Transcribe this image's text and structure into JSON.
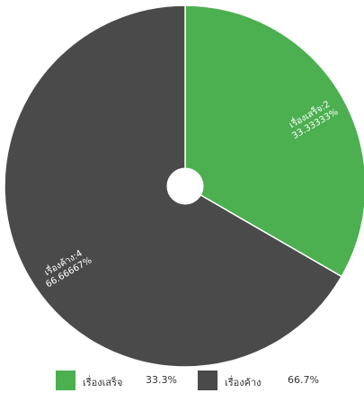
{
  "chart_data": {
    "type": "pie",
    "donut_hole": true,
    "legend_position": "bottom",
    "slices": [
      {
        "name": "เรื่องเสร็จ",
        "value": 2,
        "slice_label_name": "เรื่องเสร็จ:2",
        "slice_label_pct": "33.33333%",
        "legend_pct": "33.3%",
        "color": "#4caf50"
      },
      {
        "name": "เรื่องค้าง",
        "value": 4,
        "slice_label_name": "เรื่องค้าง:4",
        "slice_label_pct": "66.66667%",
        "legend_pct": "66.7%",
        "color": "#4a4a4a"
      }
    ]
  }
}
